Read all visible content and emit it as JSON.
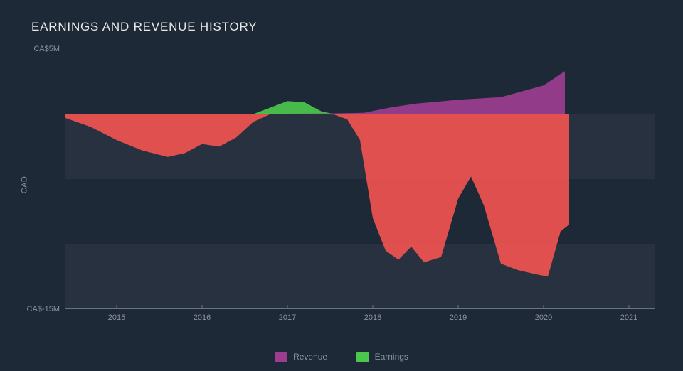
{
  "title": "EARNINGS AND REVENUE HISTORY",
  "chart": {
    "type": "area",
    "background_color": "#1e2937",
    "grid_band_color": "#28313f",
    "zero_line_color": "#c8ccd2",
    "x_axis_line_color": "#6b7380",
    "y_axis_title": "CAD",
    "y_labels": [
      {
        "v": 5,
        "text": "CA$5M"
      },
      {
        "v": -15,
        "text": "CA$-15M"
      }
    ],
    "ylim": [
      -15,
      5
    ],
    "x_years": [
      2015,
      2016,
      2017,
      2018,
      2019,
      2020,
      2021
    ],
    "xlim": [
      2014.4,
      2021.3
    ],
    "series": {
      "revenue": {
        "label": "Revenue",
        "color": "#9c3d8f",
        "points": [
          [
            2014.4,
            0.02
          ],
          [
            2015,
            0.02
          ],
          [
            2016,
            0.02
          ],
          [
            2016.5,
            0.02
          ],
          [
            2017,
            0.03
          ],
          [
            2017.5,
            0.05
          ],
          [
            2017.9,
            0.1
          ],
          [
            2018.2,
            0.5
          ],
          [
            2018.5,
            0.8
          ],
          [
            2019,
            1.1
          ],
          [
            2019.5,
            1.3
          ],
          [
            2020,
            2.2
          ],
          [
            2020.25,
            3.3
          ]
        ]
      },
      "earnings": {
        "label": "Earnings",
        "color_pos": "#4bc74b",
        "color_neg": "#ef5350",
        "points": [
          [
            2014.4,
            -0.3
          ],
          [
            2014.7,
            -1.0
          ],
          [
            2015.0,
            -2.0
          ],
          [
            2015.3,
            -2.8
          ],
          [
            2015.6,
            -3.3
          ],
          [
            2015.8,
            -3.0
          ],
          [
            2016.0,
            -2.3
          ],
          [
            2016.2,
            -2.5
          ],
          [
            2016.4,
            -1.8
          ],
          [
            2016.6,
            -0.6
          ],
          [
            2016.8,
            0.5
          ],
          [
            2017.0,
            1.0
          ],
          [
            2017.2,
            0.9
          ],
          [
            2017.4,
            0.2
          ],
          [
            2017.55,
            -0.05
          ],
          [
            2017.7,
            -0.4
          ],
          [
            2017.85,
            -2.0
          ],
          [
            2018.0,
            -8.0
          ],
          [
            2018.15,
            -10.5
          ],
          [
            2018.3,
            -11.2
          ],
          [
            2018.45,
            -10.2
          ],
          [
            2018.6,
            -11.4
          ],
          [
            2018.8,
            -11.0
          ],
          [
            2019.0,
            -6.5
          ],
          [
            2019.15,
            -4.8
          ],
          [
            2019.3,
            -7.0
          ],
          [
            2019.5,
            -11.5
          ],
          [
            2019.7,
            -12.0
          ],
          [
            2019.9,
            -12.3
          ],
          [
            2020.05,
            -12.5
          ],
          [
            2020.2,
            -9.0
          ],
          [
            2020.3,
            -8.5
          ]
        ]
      }
    },
    "legend": [
      {
        "label": "Revenue",
        "color": "#9c3d8f"
      },
      {
        "label": "Earnings",
        "color": "#4bc74b"
      }
    ]
  }
}
